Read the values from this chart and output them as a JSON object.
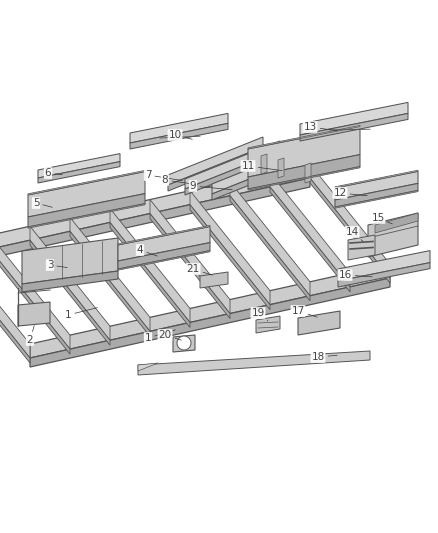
{
  "bg_color": "#ffffff",
  "line_color": "#555555",
  "dark_color": "#444444",
  "light_face": "#d8d8d8",
  "mid_face": "#b8b8b8",
  "dark_face": "#999999",
  "figsize": [
    4.38,
    5.33
  ],
  "dpi": 100,
  "label_fs": 7.5,
  "lw_main": 0.8,
  "lw_thin": 0.5,
  "xlim": [
    0,
    438
  ],
  "ylim": [
    0,
    533
  ]
}
